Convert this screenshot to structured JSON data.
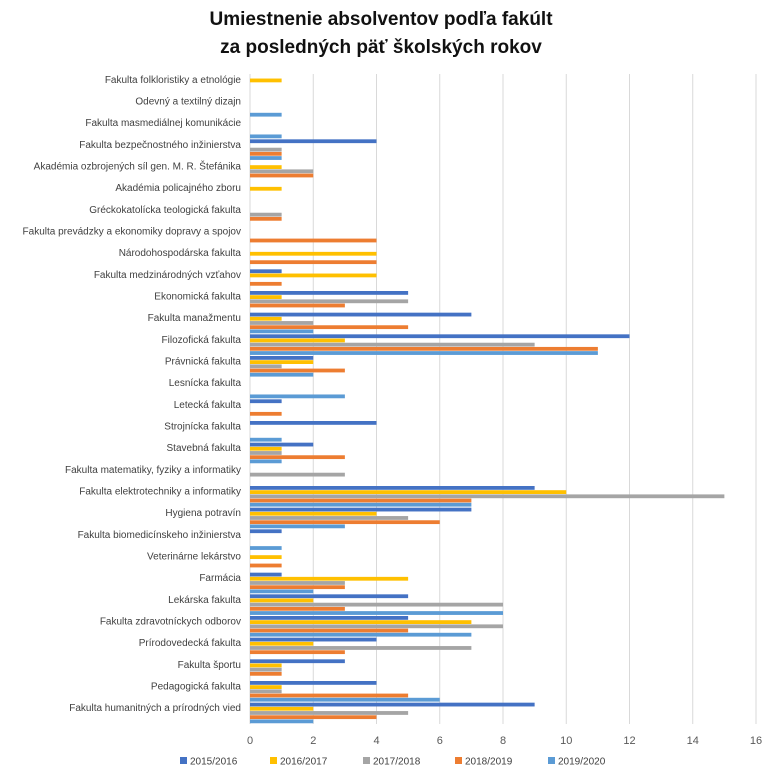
{
  "chart_data": {
    "type": "bar",
    "orientation": "horizontal",
    "title": "Umiestnenie absolventov podľa fakúlt",
    "subtitle": "za posledných päť školských rokov",
    "xlim": [
      0,
      16
    ],
    "xticks": [
      0,
      2,
      4,
      6,
      8,
      10,
      12,
      14,
      16
    ],
    "grid": "vertical",
    "legend_position": "bottom",
    "colors": {
      "2015/2016": "#4472C4",
      "2016/2017": "#FFC000",
      "2017/2018": "#A5A5A5",
      "2018/2019": "#ED7D31",
      "2019/2020": "#5B9BD5"
    },
    "categories": [
      "Fakulta folkloristiky a etnológie",
      "Odevný a textilný dizajn",
      "Fakulta masmediálnej komunikácie",
      "Fakulta bezpečnostného inžinierstva",
      "Akadémia ozbrojených síl gen. M. R. Štefánika",
      "Akadémia policajného zboru",
      "Gréckokatolícka teologická fakulta",
      "Fakulta prevádzky a ekonomiky dopravy a spojov",
      "Národohospodárska fakulta",
      "Fakulta medzinárodných vzťahov",
      "Ekonomická fakulta",
      "Fakulta manažmentu",
      "Filozofická fakulta",
      "Právnická fakulta",
      "Lesnícka fakulta",
      "Letecká fakulta",
      "Strojnícka fakulta",
      "Stavebná fakulta",
      "Fakulta matematiky, fyziky a informatiky",
      "Fakulta elektrotechniky a informatiky",
      "Hygiena potravín",
      "Fakulta biomedicínskeho inžinierstva",
      "Veterinárne lekárstvo",
      "Farmácia",
      "Lekárska fakulta",
      "Fakulta zdravotníckych odborov",
      "Prírodovedecká fakulta",
      "Fakulta športu",
      "Pedagogická fakulta",
      "Fakulta humanitných a prírodných vied"
    ],
    "series": [
      {
        "name": "2015/2016",
        "values": [
          0,
          0,
          0,
          4,
          0,
          0,
          0,
          0,
          0,
          1,
          5,
          7,
          12,
          2,
          0,
          1,
          4,
          2,
          0,
          9,
          7,
          1,
          0,
          1,
          5,
          5,
          4,
          3,
          4,
          9
        ]
      },
      {
        "name": "2016/2017",
        "values": [
          1,
          0,
          0,
          0,
          1,
          1,
          0,
          0,
          4,
          4,
          1,
          1,
          3,
          2,
          0,
          0,
          0,
          1,
          0,
          10,
          4,
          0,
          1,
          5,
          2,
          7,
          2,
          1,
          1,
          2
        ]
      },
      {
        "name": "2017/2018",
        "values": [
          0,
          0,
          0,
          1,
          2,
          0,
          1,
          0,
          0,
          0,
          5,
          2,
          9,
          1,
          0,
          0,
          0,
          1,
          3,
          15,
          5,
          0,
          0,
          3,
          8,
          8,
          7,
          1,
          1,
          5
        ]
      },
      {
        "name": "2018/2019",
        "values": [
          0,
          0,
          0,
          1,
          2,
          0,
          1,
          4,
          4,
          1,
          3,
          5,
          11,
          3,
          0,
          1,
          0,
          3,
          0,
          7,
          6,
          0,
          1,
          3,
          3,
          5,
          3,
          1,
          5,
          4
        ]
      },
      {
        "name": "2019/2020",
        "values": [
          0,
          1,
          1,
          1,
          0,
          0,
          0,
          0,
          0,
          0,
          0,
          2,
          11,
          2,
          3,
          0,
          1,
          1,
          0,
          7,
          3,
          1,
          0,
          2,
          8,
          7,
          0,
          0,
          6,
          2
        ]
      }
    ]
  }
}
